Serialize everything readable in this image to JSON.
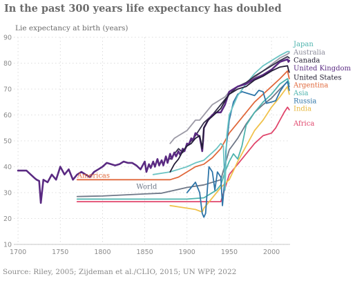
{
  "title": "In the past 300 years life expectancy has doubled",
  "source": "Source: Riley, 2005; Zijdeman et al./CLIO, 2015; UN WPP, 2022",
  "chart_data": {
    "type": "line",
    "title": "In the past 300 years life expectancy has doubled",
    "ylabel": "Lie expectancy at birth (years)",
    "xlabel": "",
    "xlim": [
      1695,
      2022
    ],
    "ylim": [
      10,
      90
    ],
    "xticks": [
      1700,
      1750,
      1800,
      1850,
      1900,
      1950,
      2000
    ],
    "yticks": [
      10,
      20,
      30,
      40,
      50,
      60,
      70,
      80,
      90
    ],
    "grid": "dotted",
    "legend": "right-end labels",
    "series": [
      {
        "name": "World",
        "color": "#6e7787",
        "width": 1.8,
        "label_at": [
          1840,
          31.5
        ],
        "x": [
          1770,
          1800,
          1850,
          1870,
          1900,
          1920,
          1940,
          1950,
          1960,
          1970,
          1980,
          1990,
          2000,
          2010,
          2019,
          2021
        ],
        "y": [
          28.5,
          28.7,
          29.5,
          29.8,
          32,
          33,
          35,
          46.5,
          51,
          56.5,
          61,
          64,
          66.5,
          70,
          72.8,
          71
        ]
      },
      {
        "name": "Americas",
        "color": "#e0683b",
        "width": 1.8,
        "label_at": [
          1770,
          35.8
        ],
        "x": [
          1770,
          1800,
          1850,
          1870,
          1880,
          1890,
          1900,
          1910,
          1920,
          1930,
          1940,
          1950,
          1960,
          1970,
          1980,
          1990,
          2000,
          2010,
          2019,
          2021
        ],
        "y": [
          35,
          35,
          35,
          35,
          35,
          36,
          38,
          40,
          41,
          43.5,
          47,
          53,
          57,
          61,
          65,
          68,
          71,
          74,
          77,
          74
        ]
      },
      {
        "name": "Africa",
        "color": "#e0456b",
        "width": 1.8,
        "label_at": null,
        "x": [
          1770,
          1850,
          1900,
          1920,
          1940,
          1950,
          1955,
          1960,
          1970,
          1980,
          1990,
          2000,
          2005,
          2010,
          2015,
          2019,
          2021
        ],
        "y": [
          26.5,
          26.5,
          26.5,
          26.5,
          26.5,
          37,
          39,
          41,
          45,
          49,
          52,
          53,
          55,
          58,
          61,
          63,
          62
        ]
      },
      {
        "name": "Asia",
        "color": "#4db3ad",
        "width": 1.8,
        "label_at": null,
        "x": [
          1770,
          1850,
          1900,
          1920,
          1935,
          1940,
          1945,
          1950,
          1955,
          1960,
          1965,
          1970,
          1980,
          1990,
          2000,
          2010,
          2019,
          2021
        ],
        "y": [
          27.5,
          27.5,
          27.5,
          28,
          31,
          33,
          38,
          42,
          45,
          43,
          48,
          56,
          61,
          65,
          68,
          72,
          74,
          72
        ]
      },
      {
        "name": "India",
        "color": "#f0c24c",
        "width": 1.8,
        "label_at": null,
        "x": [
          1880,
          1890,
          1900,
          1910,
          1918,
          1920,
          1930,
          1940,
          1950,
          1960,
          1970,
          1980,
          1990,
          2000,
          2010,
          2019,
          2021
        ],
        "y": [
          25,
          24.5,
          24,
          23.5,
          22.5,
          24,
          28,
          32,
          35,
          42,
          48,
          54,
          58,
          63,
          67,
          71,
          68
        ]
      },
      {
        "name": "Russia",
        "color": "#2e75a8",
        "width": 1.8,
        "label_at": null,
        "x": [
          1900,
          1905,
          1910,
          1915,
          1918,
          1920,
          1922,
          1926,
          1930,
          1933,
          1936,
          1940,
          1942,
          1945,
          1946,
          1950,
          1955,
          1960,
          1965,
          1970,
          1980,
          1985,
          1990,
          1994,
          2000,
          2005,
          2010,
          2015,
          2019,
          2021
        ],
        "y": [
          30,
          32,
          34,
          30,
          22,
          20.5,
          22,
          40,
          38,
          31,
          38,
          36,
          25,
          36,
          46,
          58,
          65,
          68,
          69,
          68.5,
          67.5,
          69.5,
          69,
          64.5,
          65,
          65.5,
          69,
          71.5,
          73,
          69.5
        ]
      },
      {
        "name": "Japan",
        "color": "#6cc4c4",
        "width": 1.8,
        "label_at": null,
        "x": [
          1860,
          1880,
          1890,
          1900,
          1910,
          1920,
          1930,
          1935,
          1940,
          1943,
          1945,
          1947,
          1950,
          1960,
          1970,
          1980,
          1990,
          2000,
          2010,
          2019,
          2021
        ],
        "y": [
          37,
          38,
          39,
          40,
          41.5,
          42.5,
          45.5,
          47,
          49,
          48,
          31,
          52,
          60,
          67.5,
          72,
          76,
          79,
          81,
          83,
          84.5,
          84.5
        ]
      },
      {
        "name": "Australia",
        "color": "#9c9aa6",
        "width": 1.8,
        "label_at": null,
        "x": [
          1880,
          1885,
          1890,
          1895,
          1900,
          1905,
          1910,
          1915,
          1920,
          1925,
          1930,
          1935,
          1940,
          1945,
          1950,
          1960,
          1970,
          1980,
          1990,
          2000,
          2010,
          2019,
          2021
        ],
        "y": [
          49,
          51,
          52,
          53,
          54,
          56,
          58,
          58,
          60,
          62,
          64,
          65,
          66,
          67,
          69,
          71,
          72,
          74.5,
          77,
          79.5,
          82,
          83.5,
          84
        ]
      },
      {
        "name": "Canada",
        "color": "#35314a",
        "width": 1.8,
        "label_at": null,
        "x": [
          1880,
          1885,
          1890,
          1895,
          1900,
          1905,
          1910,
          1920,
          1930,
          1940,
          1950,
          1960,
          1970,
          1980,
          1990,
          2000,
          2010,
          2019,
          2021
        ],
        "y": [
          43,
          45,
          47,
          45.5,
          48,
          50,
          52,
          57,
          60,
          64,
          68,
          71,
          72.5,
          75,
          77,
          79,
          81,
          82.5,
          82
        ]
      },
      {
        "name": "United Kingdom",
        "color": "#5a2a82",
        "width": 2.6,
        "label_at": null,
        "x": [
          1700,
          1710,
          1715,
          1720,
          1722,
          1725,
          1727,
          1730,
          1735,
          1740,
          1745,
          1750,
          1755,
          1760,
          1765,
          1770,
          1775,
          1780,
          1785,
          1790,
          1795,
          1800,
          1805,
          1810,
          1815,
          1820,
          1825,
          1830,
          1835,
          1840,
          1845,
          1850,
          1852,
          1855,
          1857,
          1860,
          1862,
          1865,
          1867,
          1870,
          1872,
          1875,
          1877,
          1880,
          1882,
          1885,
          1887,
          1890,
          1892,
          1895,
          1897,
          1900,
          1902,
          1905,
          1907,
          1910,
          1912,
          1915,
          1917,
          1918,
          1919,
          1920,
          1925,
          1930,
          1935,
          1940,
          1945,
          1950,
          1960,
          1970,
          1980,
          1990,
          2000,
          2010,
          2019,
          2020,
          2021
        ],
        "y": [
          38.5,
          38.5,
          37,
          35.5,
          35,
          34.5,
          26,
          35,
          34,
          37,
          35,
          40,
          37,
          39,
          35,
          37,
          38,
          37,
          36,
          38,
          39,
          40,
          41.5,
          41,
          40.5,
          41,
          42,
          41.5,
          41.5,
          40.5,
          39,
          42,
          38,
          41,
          39.5,
          42,
          40,
          43,
          40.5,
          42.5,
          40.5,
          44,
          41.5,
          45,
          43,
          45.5,
          44,
          46,
          44.5,
          47,
          46,
          49,
          48.5,
          51,
          50,
          53,
          52.5,
          51.5,
          48,
          46,
          50,
          55,
          58,
          60,
          61,
          61,
          64,
          69,
          71,
          72,
          74,
          75.5,
          77.5,
          80.5,
          81.5,
          80.5,
          81
        ]
      },
      {
        "name": "United States",
        "color": "#241d38",
        "width": 1.8,
        "label_at": null,
        "x": [
          1880,
          1885,
          1890,
          1895,
          1900,
          1905,
          1910,
          1915,
          1918,
          1920,
          1925,
          1930,
          1935,
          1940,
          1945,
          1950,
          1960,
          1970,
          1980,
          1990,
          2000,
          2010,
          2019,
          2020,
          2021
        ],
        "y": [
          38,
          41,
          43,
          46,
          48,
          49,
          51,
          52,
          47,
          55,
          58,
          59.5,
          61,
          62.5,
          65.5,
          68,
          70,
          71,
          73.5,
          75,
          77,
          78.5,
          79,
          77.5,
          76.5
        ]
      }
    ],
    "end_labels": [
      {
        "name": "Japan",
        "text": "Japan",
        "color": "#4db3ad",
        "y": 87.5
      },
      {
        "name": "Australia",
        "text": "Australia",
        "color": "#8a8a99",
        "y": 84.3
      },
      {
        "name": "Canada",
        "text": "Canada",
        "color": "#1f1a2e",
        "y": 81.2
      },
      {
        "name": "United Kingdom",
        "text": "United Kingdom",
        "color": "#5a2a82",
        "y": 78.2
      },
      {
        "name": "United States",
        "text": "United States",
        "color": "#1f1a2e",
        "y": 74.6
      },
      {
        "name": "Argentina",
        "text": "Argentina",
        "color": "#e0683b",
        "y": 71.6
      },
      {
        "name": "Asia",
        "text": "Asia",
        "color": "#4db3ad",
        "y": 68.6
      },
      {
        "name": "Russia",
        "text": "Russia",
        "color": "#2e75a8",
        "y": 65.5
      },
      {
        "name": "India",
        "text": "India",
        "color": "#e6b63a",
        "y": 62.6
      },
      {
        "name": "Africa",
        "text": "Africa",
        "color": "#e0456b",
        "y": 56.8
      }
    ]
  }
}
